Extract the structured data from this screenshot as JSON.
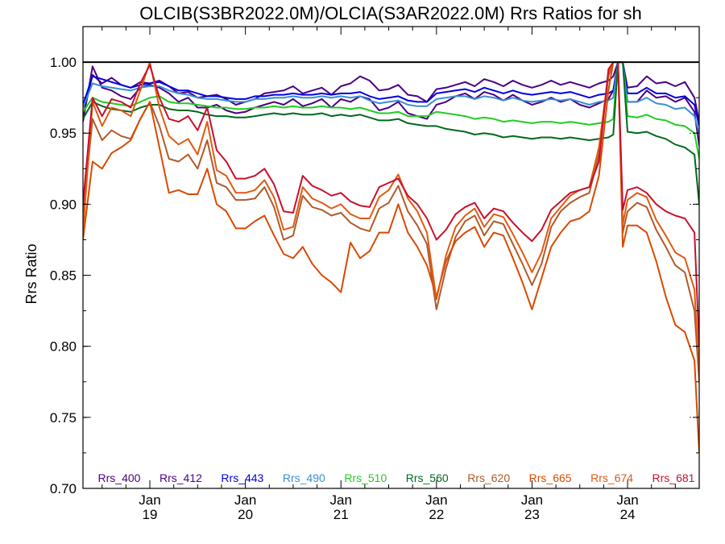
{
  "chart_data": {
    "type": "line",
    "title": "OLCIB(S3BR2022.0M)/OLCIA(S3AR2022.0M)  Rrs Ratios for sh",
    "xlabel": "",
    "ylabel": "Rrs Ratio",
    "ylim": [
      0.7,
      1.025
    ],
    "yticks": [
      0.7,
      0.75,
      0.8,
      0.85,
      0.9,
      0.95,
      1.0
    ],
    "ytick_labels": [
      "0.70",
      "0.75",
      "0.80",
      "0.85",
      "0.90",
      "0.95",
      "1.00"
    ],
    "x_unit": "day index (Jan 19 = 0)",
    "xlim": [
      -0.7,
      5.75
    ],
    "xticks": [
      {
        "x": 0,
        "month": "Jan",
        "year": "19"
      },
      {
        "x": 1,
        "month": "Jan",
        "year": "20"
      },
      {
        "x": 2,
        "month": "Jan",
        "year": "21"
      },
      {
        "x": 3,
        "month": "Jan",
        "year": "22"
      },
      {
        "x": 4,
        "month": "Jan",
        "year": "23"
      },
      {
        "x": 5,
        "month": "Jan",
        "year": "24"
      }
    ],
    "reference_line": 1.0,
    "legend_position": "bottom",
    "x": [
      -0.7,
      -0.6,
      -0.5,
      -0.4,
      -0.3,
      -0.2,
      -0.1,
      0.0,
      0.1,
      0.2,
      0.3,
      0.4,
      0.5,
      0.6,
      0.7,
      0.8,
      0.9,
      1.0,
      1.1,
      1.2,
      1.3,
      1.4,
      1.5,
      1.6,
      1.7,
      1.8,
      1.9,
      2.0,
      2.1,
      2.2,
      2.3,
      2.4,
      2.5,
      2.6,
      2.7,
      2.8,
      2.9,
      3.0,
      3.1,
      3.2,
      3.3,
      3.4,
      3.5,
      3.6,
      3.7,
      3.8,
      3.9,
      4.0,
      4.1,
      4.2,
      4.3,
      4.4,
      4.5,
      4.6,
      4.7,
      4.8,
      4.85,
      4.9,
      4.95,
      5.0,
      5.1,
      5.2,
      5.3,
      5.4,
      5.5,
      5.6,
      5.7,
      5.75
    ],
    "series": [
      {
        "name": "Rrs_400",
        "color": "#4b0082",
        "values": [
          0.962,
          0.991,
          0.985,
          0.989,
          0.984,
          0.982,
          0.986,
          0.985,
          0.987,
          0.983,
          0.978,
          0.979,
          0.975,
          0.976,
          0.977,
          0.974,
          0.97,
          0.972,
          0.974,
          0.978,
          0.979,
          0.98,
          0.983,
          0.978,
          0.98,
          0.982,
          0.977,
          0.983,
          0.985,
          0.99,
          0.987,
          0.98,
          0.981,
          0.984,
          0.977,
          0.976,
          0.972,
          0.981,
          0.982,
          0.984,
          0.986,
          0.983,
          0.988,
          0.986,
          0.983,
          0.987,
          0.984,
          0.982,
          0.984,
          0.987,
          0.984,
          0.986,
          0.984,
          0.982,
          0.985,
          0.987,
          0.99,
          1.0,
          1.0,
          0.982,
          0.983,
          0.99,
          0.985,
          0.986,
          0.983,
          0.986,
          0.975,
          0.958
        ]
      },
      {
        "name": "Rrs_412",
        "color": "#4b0082",
        "values": [
          0.958,
          0.997,
          0.982,
          0.98,
          0.976,
          0.974,
          0.982,
          0.984,
          0.982,
          0.978,
          0.972,
          0.975,
          0.968,
          0.968,
          0.97,
          0.966,
          0.964,
          0.965,
          0.968,
          0.97,
          0.972,
          0.97,
          0.974,
          0.969,
          0.971,
          0.974,
          0.968,
          0.974,
          0.972,
          0.976,
          0.974,
          0.966,
          0.968,
          0.972,
          0.964,
          0.962,
          0.96,
          0.97,
          0.972,
          0.976,
          0.978,
          0.974,
          0.979,
          0.977,
          0.973,
          0.977,
          0.973,
          0.97,
          0.972,
          0.975,
          0.972,
          0.974,
          0.97,
          0.968,
          0.971,
          0.974,
          0.98,
          1.0,
          1.0,
          0.972,
          0.972,
          0.98,
          0.975,
          0.976,
          0.972,
          0.975,
          0.965,
          0.941
        ]
      },
      {
        "name": "Rrs_443",
        "color": "#0000e0",
        "values": [
          0.97,
          0.99,
          0.988,
          0.986,
          0.984,
          0.982,
          0.984,
          0.985,
          0.986,
          0.983,
          0.98,
          0.98,
          0.978,
          0.976,
          0.976,
          0.975,
          0.974,
          0.974,
          0.976,
          0.976,
          0.977,
          0.977,
          0.978,
          0.977,
          0.977,
          0.978,
          0.977,
          0.978,
          0.978,
          0.979,
          0.976,
          0.974,
          0.975,
          0.976,
          0.973,
          0.972,
          0.972,
          0.978,
          0.979,
          0.98,
          0.981,
          0.979,
          0.982,
          0.98,
          0.978,
          0.98,
          0.978,
          0.977,
          0.978,
          0.979,
          0.978,
          0.979,
          0.977,
          0.975,
          0.977,
          0.978,
          0.98,
          1.0,
          1.0,
          0.978,
          0.978,
          0.982,
          0.978,
          0.978,
          0.975,
          0.976,
          0.97,
          0.955
        ]
      },
      {
        "name": "Rrs_490",
        "color": "#3a8fd6",
        "values": [
          0.968,
          0.985,
          0.983,
          0.982,
          0.981,
          0.98,
          0.982,
          0.983,
          0.983,
          0.98,
          0.978,
          0.977,
          0.975,
          0.974,
          0.974,
          0.973,
          0.972,
          0.972,
          0.974,
          0.974,
          0.975,
          0.975,
          0.976,
          0.975,
          0.975,
          0.976,
          0.975,
          0.976,
          0.975,
          0.976,
          0.973,
          0.971,
          0.972,
          0.973,
          0.97,
          0.969,
          0.969,
          0.974,
          0.975,
          0.976,
          0.976,
          0.974,
          0.976,
          0.975,
          0.973,
          0.975,
          0.973,
          0.972,
          0.973,
          0.974,
          0.973,
          0.974,
          0.972,
          0.97,
          0.972,
          0.973,
          0.975,
          1.0,
          1.0,
          0.972,
          0.972,
          0.975,
          0.971,
          0.97,
          0.967,
          0.968,
          0.962,
          0.95
        ]
      },
      {
        "name": "Rrs_510",
        "color": "#22cc22",
        "values": [
          0.965,
          0.975,
          0.972,
          0.971,
          0.97,
          0.969,
          0.972,
          0.975,
          0.976,
          0.972,
          0.971,
          0.971,
          0.97,
          0.969,
          0.968,
          0.968,
          0.967,
          0.967,
          0.968,
          0.968,
          0.969,
          0.968,
          0.969,
          0.968,
          0.968,
          0.969,
          0.968,
          0.968,
          0.967,
          0.968,
          0.966,
          0.964,
          0.964,
          0.965,
          0.962,
          0.962,
          0.962,
          0.965,
          0.964,
          0.963,
          0.962,
          0.96,
          0.961,
          0.96,
          0.958,
          0.959,
          0.958,
          0.957,
          0.958,
          0.958,
          0.957,
          0.958,
          0.957,
          0.956,
          0.957,
          0.958,
          0.96,
          1.0,
          1.0,
          0.962,
          0.961,
          0.963,
          0.96,
          0.959,
          0.956,
          0.955,
          0.95,
          0.932
        ]
      },
      {
        "name": "Rrs_560",
        "color": "#006a1e",
        "values": [
          0.96,
          0.972,
          0.969,
          0.967,
          0.966,
          0.965,
          0.968,
          0.97,
          0.97,
          0.967,
          0.966,
          0.966,
          0.965,
          0.963,
          0.962,
          0.962,
          0.961,
          0.961,
          0.962,
          0.963,
          0.964,
          0.963,
          0.964,
          0.963,
          0.963,
          0.964,
          0.962,
          0.963,
          0.962,
          0.963,
          0.961,
          0.959,
          0.959,
          0.96,
          0.957,
          0.956,
          0.955,
          0.955,
          0.953,
          0.952,
          0.951,
          0.949,
          0.95,
          0.949,
          0.947,
          0.948,
          0.947,
          0.946,
          0.947,
          0.947,
          0.946,
          0.947,
          0.946,
          0.945,
          0.946,
          0.947,
          0.949,
          1.0,
          1.0,
          0.951,
          0.95,
          0.951,
          0.948,
          0.946,
          0.942,
          0.94,
          0.935,
          0.9
        ]
      },
      {
        "name": "Rrs_620",
        "color": "#b05a2a",
        "values": [
          0.893,
          0.96,
          0.945,
          0.952,
          0.948,
          0.946,
          0.96,
          0.972,
          0.955,
          0.932,
          0.93,
          0.935,
          0.925,
          0.945,
          0.915,
          0.912,
          0.903,
          0.903,
          0.904,
          0.912,
          0.898,
          0.875,
          0.878,
          0.906,
          0.898,
          0.896,
          0.892,
          0.894,
          0.887,
          0.883,
          0.881,
          0.897,
          0.901,
          0.913,
          0.895,
          0.885,
          0.872,
          0.826,
          0.855,
          0.877,
          0.888,
          0.892,
          0.878,
          0.888,
          0.886,
          0.872,
          0.858,
          0.843,
          0.858,
          0.884,
          0.895,
          0.901,
          0.905,
          0.908,
          0.935,
          0.99,
          1.0,
          1.0,
          0.88,
          0.895,
          0.901,
          0.898,
          0.882,
          0.87,
          0.857,
          0.852,
          0.825,
          0.775
        ]
      },
      {
        "name": "Rrs_665",
        "color": "#d84a00",
        "values": [
          0.875,
          0.93,
          0.925,
          0.936,
          0.94,
          0.945,
          0.96,
          0.972,
          0.94,
          0.908,
          0.91,
          0.907,
          0.907,
          0.925,
          0.9,
          0.895,
          0.883,
          0.883,
          0.888,
          0.892,
          0.878,
          0.865,
          0.862,
          0.87,
          0.858,
          0.85,
          0.845,
          0.838,
          0.873,
          0.862,
          0.867,
          0.88,
          0.88,
          0.9,
          0.88,
          0.87,
          0.857,
          0.835,
          0.86,
          0.874,
          0.88,
          0.884,
          0.87,
          0.88,
          0.878,
          0.862,
          0.845,
          0.826,
          0.848,
          0.87,
          0.88,
          0.888,
          0.89,
          0.895,
          0.92,
          0.98,
          1.0,
          1.0,
          0.87,
          0.885,
          0.885,
          0.88,
          0.86,
          0.835,
          0.815,
          0.81,
          0.79,
          0.725
        ]
      },
      {
        "name": "Rrs_674",
        "color": "#e05a10",
        "values": [
          0.88,
          0.972,
          0.955,
          0.968,
          0.966,
          0.962,
          0.98,
          1.0,
          0.968,
          0.948,
          0.942,
          0.946,
          0.935,
          0.958,
          0.924,
          0.92,
          0.908,
          0.908,
          0.91,
          0.917,
          0.905,
          0.882,
          0.884,
          0.912,
          0.904,
          0.901,
          0.897,
          0.9,
          0.893,
          0.89,
          0.89,
          0.905,
          0.91,
          0.921,
          0.904,
          0.895,
          0.88,
          0.833,
          0.864,
          0.884,
          0.892,
          0.897,
          0.884,
          0.893,
          0.891,
          0.879,
          0.866,
          0.852,
          0.866,
          0.89,
          0.898,
          0.906,
          0.91,
          0.912,
          0.94,
          0.992,
          1.0,
          1.0,
          0.886,
          0.903,
          0.908,
          0.905,
          0.889,
          0.878,
          0.866,
          0.862,
          0.84,
          0.78
        ]
      },
      {
        "name": "Rrs_681",
        "color": "#c8102e",
        "values": [
          0.9,
          0.975,
          0.962,
          0.974,
          0.972,
          0.968,
          0.985,
          0.998,
          0.975,
          0.96,
          0.958,
          0.962,
          0.952,
          0.968,
          0.938,
          0.93,
          0.918,
          0.918,
          0.92,
          0.925,
          0.914,
          0.895,
          0.894,
          0.92,
          0.913,
          0.91,
          0.906,
          0.908,
          0.902,
          0.899,
          0.898,
          0.912,
          0.915,
          0.918,
          0.906,
          0.9,
          0.89,
          0.875,
          0.882,
          0.893,
          0.898,
          0.901,
          0.89,
          0.897,
          0.895,
          0.887,
          0.88,
          0.874,
          0.882,
          0.896,
          0.902,
          0.908,
          0.91,
          0.912,
          0.93,
          0.995,
          1.0,
          1.0,
          0.896,
          0.91,
          0.912,
          0.908,
          0.9,
          0.895,
          0.892,
          0.89,
          0.88,
          0.8
        ]
      }
    ]
  }
}
